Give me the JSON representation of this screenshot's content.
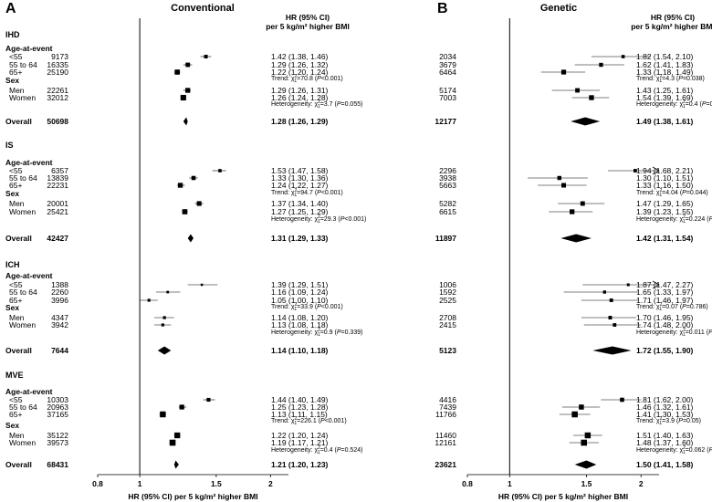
{
  "panels": [
    {
      "letter": "A",
      "title": "Conventional",
      "hr_header": [
        "HR (95% CI)",
        "per 5 kg/m² higher BMI"
      ]
    },
    {
      "letter": "B",
      "title": "Genetic",
      "hr_header": [
        "HR (95% CI)",
        "per 5 kg/m² higher BMI"
      ]
    }
  ],
  "row_labels": {
    "age": "Age-at-event",
    "sex": "Sex",
    "overall": "Overall"
  },
  "x_axis_label": "HR (95% CI) per 5 kg/m² higher BMI",
  "chart_data": [
    {
      "type": "forest",
      "title": "Conventional",
      "xlabel": "HR (95% CI) per 5 kg/m² higher BMI",
      "x_scale": "log",
      "xlim": [
        0.8,
        2.2
      ],
      "xticks": [
        0.8,
        1,
        1.5,
        2
      ],
      "xtick_labels": [
        "0.8",
        "1",
        "1.5",
        "2"
      ],
      "ref_line": 1,
      "outcomes": [
        {
          "name": "IHD",
          "rows": [
            {
              "label": "<55",
              "n": "9173",
              "hr": 1.42,
              "lo": 1.38,
              "hi": 1.46,
              "text": "1.42 (1.38, 1.46)"
            },
            {
              "label": "55 to 64",
              "n": "16335",
              "hr": 1.29,
              "lo": 1.26,
              "hi": 1.32,
              "text": "1.29 (1.26, 1.32)"
            },
            {
              "label": "65+",
              "n": "25190",
              "hr": 1.22,
              "lo": 1.2,
              "hi": 1.24,
              "text": "1.22 (1.20, 1.24)"
            },
            {
              "label": "Men",
              "n": "22261",
              "hr": 1.29,
              "lo": 1.26,
              "hi": 1.31,
              "text": "1.29 (1.26, 1.31)"
            },
            {
              "label": "Women",
              "n": "32012",
              "hr": 1.26,
              "lo": 1.24,
              "hi": 1.28,
              "text": "1.26 (1.24, 1.28)"
            }
          ],
          "age_test": {
            "pre": "Trend: χ",
            "sup": "2",
            "sub": "1",
            "mid": "=70.8 (",
            "p": "P",
            "post": "<0.001)"
          },
          "sex_test": {
            "pre": "Heterogeneity: χ",
            "sup": "2",
            "sub": "1",
            "mid": "=3.7 (",
            "p": "P",
            "post": "=0.055)"
          },
          "overall": {
            "n": "50698",
            "hr": 1.28,
            "lo": 1.26,
            "hi": 1.29,
            "text": "1.28 (1.26, 1.29)"
          }
        },
        {
          "name": "IS",
          "rows": [
            {
              "label": "<55",
              "n": "6357",
              "hr": 1.53,
              "lo": 1.47,
              "hi": 1.58,
              "text": "1.53 (1.47, 1.58)"
            },
            {
              "label": "55 to 64",
              "n": "13839",
              "hr": 1.33,
              "lo": 1.3,
              "hi": 1.36,
              "text": "1.33 (1.30, 1.36)"
            },
            {
              "label": "65+",
              "n": "22231",
              "hr": 1.24,
              "lo": 1.22,
              "hi": 1.27,
              "text": "1.24 (1.22, 1.27)"
            },
            {
              "label": "Men",
              "n": "20001",
              "hr": 1.37,
              "lo": 1.34,
              "hi": 1.4,
              "text": "1.37 (1.34, 1.40)"
            },
            {
              "label": "Women",
              "n": "25421",
              "hr": 1.27,
              "lo": 1.25,
              "hi": 1.29,
              "text": "1.27 (1.25, 1.29)"
            }
          ],
          "age_test": {
            "pre": "Trend: χ",
            "sup": "2",
            "sub": "1",
            "mid": "=94.7 (",
            "p": "P",
            "post": "<0.001)"
          },
          "sex_test": {
            "pre": "Heterogeneity: χ",
            "sup": "2",
            "sub": "1",
            "mid": "=29.3 (",
            "p": "P",
            "post": "<0.001)"
          },
          "overall": {
            "n": "42427",
            "hr": 1.31,
            "lo": 1.29,
            "hi": 1.33,
            "text": "1.31 (1.29, 1.33)"
          }
        },
        {
          "name": "ICH",
          "rows": [
            {
              "label": "<55",
              "n": "1388",
              "hr": 1.39,
              "lo": 1.29,
              "hi": 1.51,
              "text": "1.39 (1.29, 1.51)"
            },
            {
              "label": "55 to 64",
              "n": "2260",
              "hr": 1.16,
              "lo": 1.09,
              "hi": 1.24,
              "text": "1.16 (1.09, 1.24)"
            },
            {
              "label": "65+",
              "n": "3996",
              "hr": 1.05,
              "lo": 1.0,
              "hi": 1.1,
              "text": "1.05 (1.00, 1.10)"
            },
            {
              "label": "Men",
              "n": "4347",
              "hr": 1.14,
              "lo": 1.08,
              "hi": 1.2,
              "text": "1.14 (1.08, 1.20)"
            },
            {
              "label": "Women",
              "n": "3942",
              "hr": 1.13,
              "lo": 1.08,
              "hi": 1.18,
              "text": "1.13 (1.08, 1.18)"
            }
          ],
          "age_test": {
            "pre": "Trend: χ",
            "sup": "2",
            "sub": "1",
            "mid": "=33.9 (",
            "p": "P",
            "post": "<0.001)"
          },
          "sex_test": {
            "pre": "Heterogeneity: χ",
            "sup": "2",
            "sub": "1",
            "mid": "=0.9 (",
            "p": "P",
            "post": "=0.339)"
          },
          "overall": {
            "n": "7644",
            "hr": 1.14,
            "lo": 1.1,
            "hi": 1.18,
            "text": "1.14 (1.10, 1.18)"
          }
        },
        {
          "name": "MVE",
          "rows": [
            {
              "label": "<55",
              "n": "10303",
              "hr": 1.44,
              "lo": 1.4,
              "hi": 1.49,
              "text": "1.44 (1.40, 1.49)"
            },
            {
              "label": "55 to 64",
              "n": "20963",
              "hr": 1.25,
              "lo": 1.23,
              "hi": 1.28,
              "text": "1.25 (1.23, 1.28)"
            },
            {
              "label": "65+",
              "n": "37165",
              "hr": 1.13,
              "lo": 1.11,
              "hi": 1.15,
              "text": "1.13 (1.11, 1.15)"
            },
            {
              "label": "Men",
              "n": "35122",
              "hr": 1.22,
              "lo": 1.2,
              "hi": 1.24,
              "text": "1.22 (1.20, 1.24)"
            },
            {
              "label": "Women",
              "n": "39573",
              "hr": 1.19,
              "lo": 1.17,
              "hi": 1.21,
              "text": "1.19 (1.17, 1.21)"
            }
          ],
          "age_test": {
            "pre": "Trend: χ",
            "sup": "2",
            "sub": "1",
            "mid": "=226.1 (",
            "p": "P",
            "post": "<0.001)"
          },
          "sex_test": {
            "pre": "Heterogeneity: χ",
            "sup": "2",
            "sub": "1",
            "mid": "=0.4 (",
            "p": "P",
            "post": "=0.524)"
          },
          "overall": {
            "n": "68431",
            "hr": 1.21,
            "lo": 1.2,
            "hi": 1.23,
            "text": "1.21 (1.20, 1.23)"
          }
        }
      ]
    },
    {
      "type": "forest",
      "title": "Genetic",
      "xlabel": "HR (95% CI) per 5 kg/m² higher BMI",
      "x_scale": "log",
      "xlim": [
        0.8,
        2.2
      ],
      "xticks": [
        0.8,
        1,
        1.5,
        2
      ],
      "xtick_labels": [
        "0.8",
        "1",
        "1.5",
        "2"
      ],
      "ref_line": 1,
      "outcomes": [
        {
          "name": "IHD",
          "rows": [
            {
              "label": "<55",
              "n": "2034",
              "hr": 1.82,
              "lo": 1.54,
              "hi": 2.1,
              "text": "1.82 (1.54, 2.10)"
            },
            {
              "label": "55 to 64",
              "n": "3679",
              "hr": 1.62,
              "lo": 1.41,
              "hi": 1.83,
              "text": "1.62 (1.41, 1.83)"
            },
            {
              "label": "65+",
              "n": "6464",
              "hr": 1.33,
              "lo": 1.18,
              "hi": 1.49,
              "text": "1.33 (1.18, 1.49)"
            },
            {
              "label": "Men",
              "n": "5174",
              "hr": 1.43,
              "lo": 1.25,
              "hi": 1.61,
              "text": "1.43 (1.25, 1.61)"
            },
            {
              "label": "Women",
              "n": "7003",
              "hr": 1.54,
              "lo": 1.39,
              "hi": 1.69,
              "text": "1.54 (1.39, 1.69)"
            }
          ],
          "age_test": {
            "pre": "Trend: χ",
            "sup": "2",
            "sub": "1",
            "mid": "=4.3 (",
            "p": "P",
            "post": "=0.038)"
          },
          "sex_test": {
            "pre": "Heterogeneity: χ",
            "sup": "2",
            "sub": "1",
            "mid": "=0.4 (",
            "p": "P",
            "post": "=0.536)"
          },
          "overall": {
            "n": "12177",
            "hr": 1.49,
            "lo": 1.38,
            "hi": 1.61,
            "text": "1.49 (1.38, 1.61)"
          }
        },
        {
          "name": "IS",
          "rows": [
            {
              "label": "<55",
              "n": "2296",
              "hr": 1.94,
              "lo": 1.68,
              "hi": 2.21,
              "text": "1.94 (1.68, 2.21)"
            },
            {
              "label": "55 to 64",
              "n": "3938",
              "hr": 1.3,
              "lo": 1.1,
              "hi": 1.51,
              "text": "1.30 (1.10, 1.51)"
            },
            {
              "label": "65+",
              "n": "5663",
              "hr": 1.33,
              "lo": 1.16,
              "hi": 1.5,
              "text": "1.33 (1.16, 1.50)"
            },
            {
              "label": "Men",
              "n": "5282",
              "hr": 1.47,
              "lo": 1.29,
              "hi": 1.65,
              "text": "1.47 (1.29, 1.65)"
            },
            {
              "label": "Women",
              "n": "6615",
              "hr": 1.39,
              "lo": 1.23,
              "hi": 1.55,
              "text": "1.39 (1.23, 1.55)"
            }
          ],
          "age_test": {
            "pre": "Trend: χ",
            "sup": "2",
            "sub": "1",
            "mid": "=4.04 (",
            "p": "P",
            "post": "=0.044)"
          },
          "sex_test": {
            "pre": "Heterogeneity: χ",
            "sup": "2",
            "sub": "1",
            "mid": "=0.224 (",
            "p": "P",
            "post": "=0.636)"
          },
          "overall": {
            "n": "11897",
            "hr": 1.42,
            "lo": 1.31,
            "hi": 1.54,
            "text": "1.42 (1.31, 1.54)"
          }
        },
        {
          "name": "ICH",
          "rows": [
            {
              "label": "<55",
              "n": "1006",
              "hr": 1.87,
              "lo": 1.47,
              "hi": 2.27,
              "text": "1.87 (1.47, 2.27)"
            },
            {
              "label": "55 to 64",
              "n": "1592",
              "hr": 1.65,
              "lo": 1.33,
              "hi": 1.97,
              "text": "1.65 (1.33, 1.97)"
            },
            {
              "label": "65+",
              "n": "2525",
              "hr": 1.71,
              "lo": 1.46,
              "hi": 1.97,
              "text": "1.71 (1.46, 1.97)"
            },
            {
              "label": "Men",
              "n": "2708",
              "hr": 1.7,
              "lo": 1.46,
              "hi": 1.95,
              "text": "1.70 (1.46, 1.95)"
            },
            {
              "label": "Women",
              "n": "2415",
              "hr": 1.74,
              "lo": 1.48,
              "hi": 2.0,
              "text": "1.74 (1.48, 2.00)"
            }
          ],
          "age_test": {
            "pre": "Trend: χ",
            "sup": "2",
            "sub": "1",
            "mid": "=0.07 (",
            "p": "P",
            "post": "=0.786)"
          },
          "sex_test": {
            "pre": "Heterogeneity: χ",
            "sup": "2",
            "sub": "1",
            "mid": "=0.011 (",
            "p": "P",
            "post": "=0.915)"
          },
          "overall": {
            "n": "5123",
            "hr": 1.72,
            "lo": 1.55,
            "hi": 1.9,
            "text": "1.72 (1.55, 1.90)"
          }
        },
        {
          "name": "MVE",
          "rows": [
            {
              "label": "<55",
              "n": "4416",
              "hr": 1.81,
              "lo": 1.62,
              "hi": 2.0,
              "text": "1.81 (1.62, 2.00)"
            },
            {
              "label": "55 to 64",
              "n": "7439",
              "hr": 1.46,
              "lo": 1.32,
              "hi": 1.61,
              "text": "1.46 (1.32, 1.61)"
            },
            {
              "label": "65+",
              "n": "11766",
              "hr": 1.41,
              "lo": 1.3,
              "hi": 1.53,
              "text": "1.41 (1.30, 1.53)"
            },
            {
              "label": "Men",
              "n": "11460",
              "hr": 1.51,
              "lo": 1.4,
              "hi": 1.63,
              "text": "1.51 (1.40, 1.63)"
            },
            {
              "label": "Women",
              "n": "12161",
              "hr": 1.48,
              "lo": 1.37,
              "hi": 1.6,
              "text": "1.48 (1.37, 1.60)"
            }
          ],
          "age_test": {
            "pre": "Trend: χ",
            "sup": "2",
            "sub": "1",
            "mid": "=3.9 (",
            "p": "P",
            "post": "=0.05)"
          },
          "sex_test": {
            "pre": "Heterogeneity: χ",
            "sup": "2",
            "sub": "1",
            "mid": "=0.062 (",
            "p": "P",
            "post": "=0.804)"
          },
          "overall": {
            "n": "23621",
            "hr": 1.5,
            "lo": 1.41,
            "hi": 1.58,
            "text": "1.50 (1.41, 1.58)"
          }
        }
      ]
    }
  ]
}
